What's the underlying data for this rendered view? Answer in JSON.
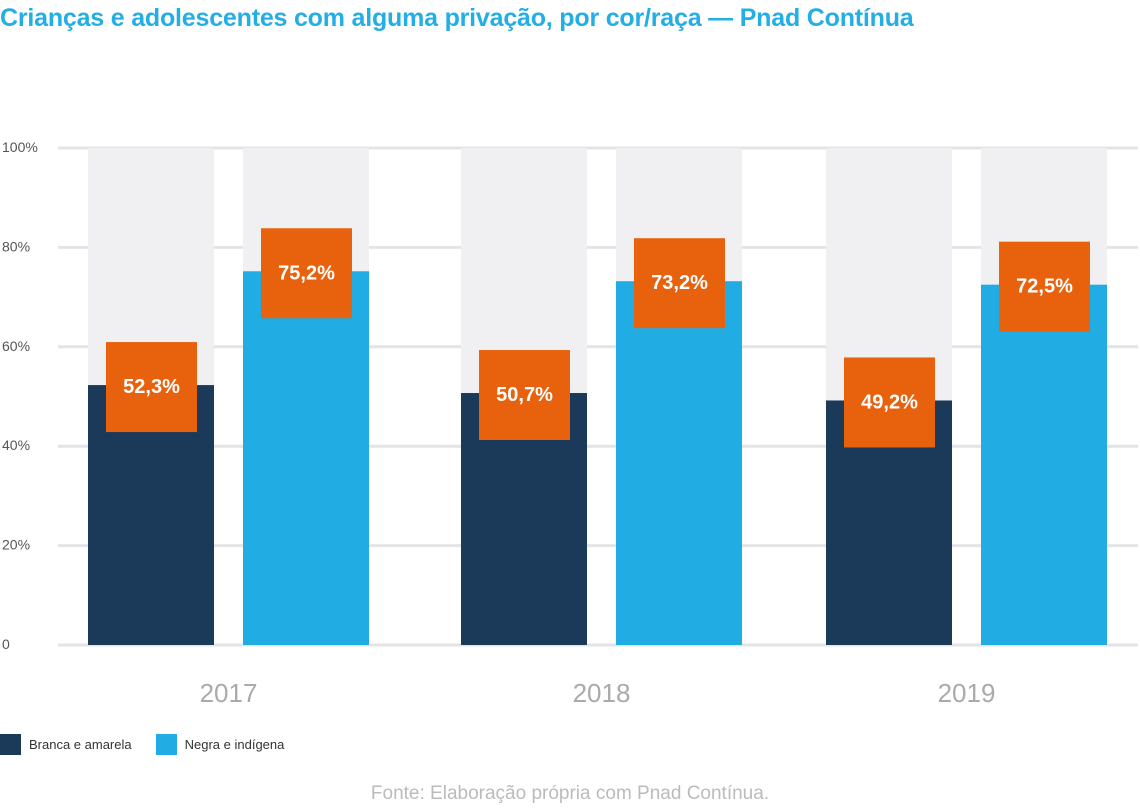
{
  "colors": {
    "title": "#23aee6",
    "branca": "#1b3a5a",
    "negra": "#21ade4",
    "label_box": "#e8620e",
    "background_track": "#f0eff1",
    "grid": "#e4e4e4",
    "axis_text": "#555555",
    "year_text": "#aaaaaa"
  },
  "chart_data": {
    "type": "bar",
    "title": "Crianças e adolescentes com alguma privação, por cor/raça — Pnad Contínua",
    "categories": [
      "2017",
      "2018",
      "2019"
    ],
    "series": [
      {
        "name": "Branca e amarela",
        "values": [
          52.3,
          50.7,
          49.2
        ],
        "labels": [
          "52,3%",
          "50,7%",
          "49,2%"
        ]
      },
      {
        "name": "Negra e indígena",
        "values": [
          75.2,
          73.2,
          72.5
        ],
        "labels": [
          "75,2%",
          "73,2%",
          "72,5%"
        ]
      }
    ],
    "yticks": [
      "0",
      "20%",
      "40%",
      "60%",
      "80%",
      "100%"
    ],
    "ylim": [
      0,
      100
    ],
    "grid": true,
    "legend_position": "bottom-left",
    "background_track_value": 100
  },
  "legend": {
    "branca_label": "Branca e amarela",
    "negra_label": "Negra e indígena"
  },
  "source_text": "Fonte: Elaboração própria com Pnad Contínua."
}
